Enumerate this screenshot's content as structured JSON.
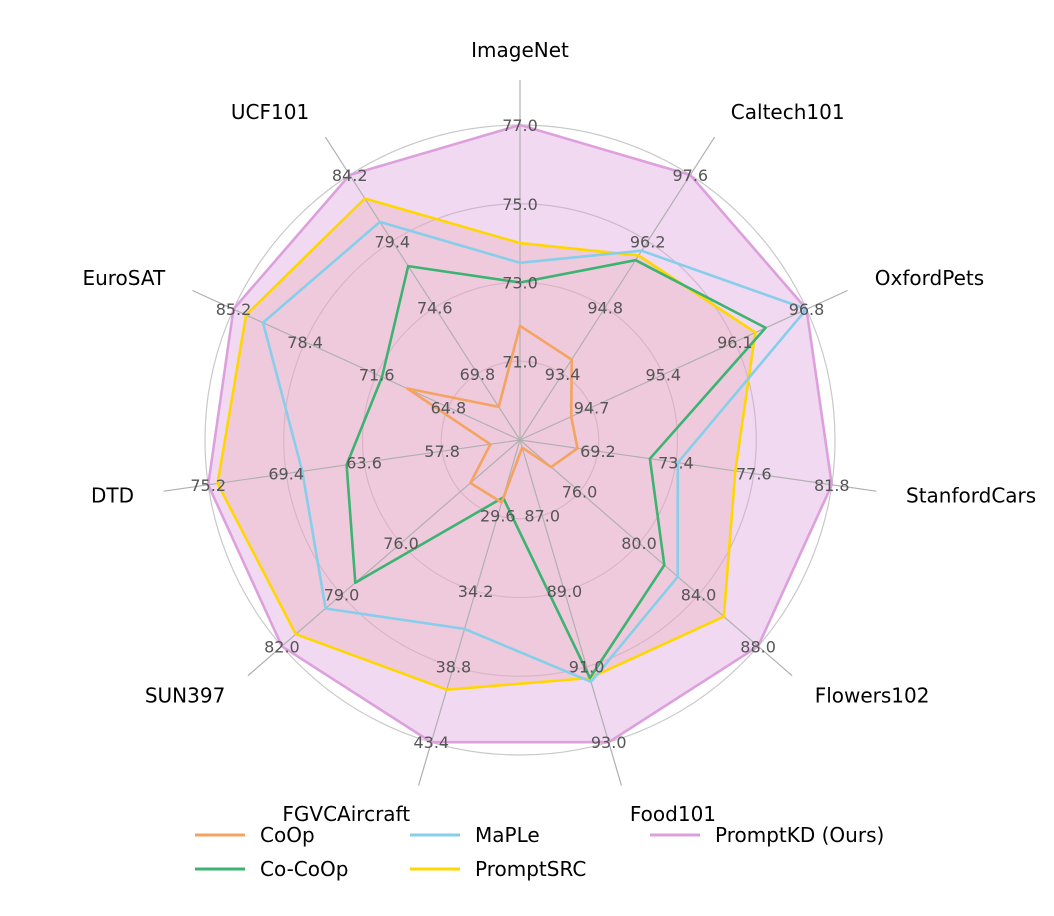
{
  "chart_data": {
    "type": "radar",
    "axes": [
      "ImageNet",
      "Caltech101",
      "OxfordPets",
      "StanfordCars",
      "Flowers102",
      "Food101",
      "FGVCAircraft",
      "SUN397",
      "DTD",
      "EuroSAT",
      "UCF101"
    ],
    "ticks": [
      [
        "71.0",
        "73.0",
        "75.0",
        "77.0"
      ],
      [
        "93.4",
        "94.8",
        "96.2",
        "97.6"
      ],
      [
        "94.7",
        "95.4",
        "96.1",
        "96.8"
      ],
      [
        "69.2",
        "73.4",
        "77.6",
        "81.8"
      ],
      [
        "76.0",
        "80.0",
        "84.0",
        "88.0"
      ],
      [
        "87.0",
        "89.0",
        "91.0",
        "93.0"
      ],
      [
        "29.6",
        "34.2",
        "38.8",
        "43.4"
      ],
      [
        "76.0",
        "79.0",
        "82.0"
      ],
      [
        "57.8",
        "63.6",
        "69.4",
        "75.2"
      ],
      [
        "64.8",
        "71.6",
        "78.4",
        "85.2"
      ],
      [
        "69.8",
        "74.6",
        "79.4",
        "84.2"
      ]
    ],
    "ranges": [
      [
        69.0,
        77.0
      ],
      [
        92.0,
        97.6
      ],
      [
        94.0,
        96.8
      ],
      [
        65.0,
        81.8
      ],
      [
        72.0,
        88.0
      ],
      [
        85.0,
        93.0
      ],
      [
        25.0,
        43.4
      ],
      [
        70.0,
        82.0
      ],
      [
        52.0,
        75.2
      ],
      [
        58.0,
        85.2
      ],
      [
        65.0,
        84.2
      ]
    ],
    "series": [
      {
        "name": "CoOp",
        "color": "#f4a460",
        "fill": "none",
        "values": [
          71.9,
          93.7,
          94.5,
          68.1,
          74.1,
          85.2,
          28.8,
          72.5,
          54.2,
          68.7,
          67.4
        ]
      },
      {
        "name": "Co-CoOp",
        "color": "#3cb371",
        "fill": "none",
        "values": [
          73.0,
          95.8,
          96.4,
          72.0,
          81.7,
          91.3,
          28.5,
          78.3,
          64.9,
          71.1,
          77.6
        ]
      },
      {
        "name": "MaPLe",
        "color": "#87ceeb",
        "fill": "none",
        "values": [
          73.5,
          96.0,
          96.9,
          73.5,
          82.6,
          91.4,
          36.5,
          79.8,
          68.2,
          82.4,
          80.8
        ]
      },
      {
        "name": "PromptSRC",
        "color": "#ffd700",
        "fill": "#f5b8a0",
        "values": [
          74.0,
          95.9,
          96.3,
          76.6,
          85.7,
          91.3,
          40.2,
          81.3,
          74.5,
          84.0,
          82.5
        ]
      },
      {
        "name": "PromptKD (Ours)",
        "color": "#dda0dd",
        "fill": "#dda0dd",
        "values": [
          77.5,
          98.0,
          97.3,
          82.5,
          89.5,
          93.2,
          46.0,
          83.0,
          78.5,
          88.5,
          86.5
        ]
      }
    ],
    "grid": true,
    "legend_position": "bottom"
  }
}
